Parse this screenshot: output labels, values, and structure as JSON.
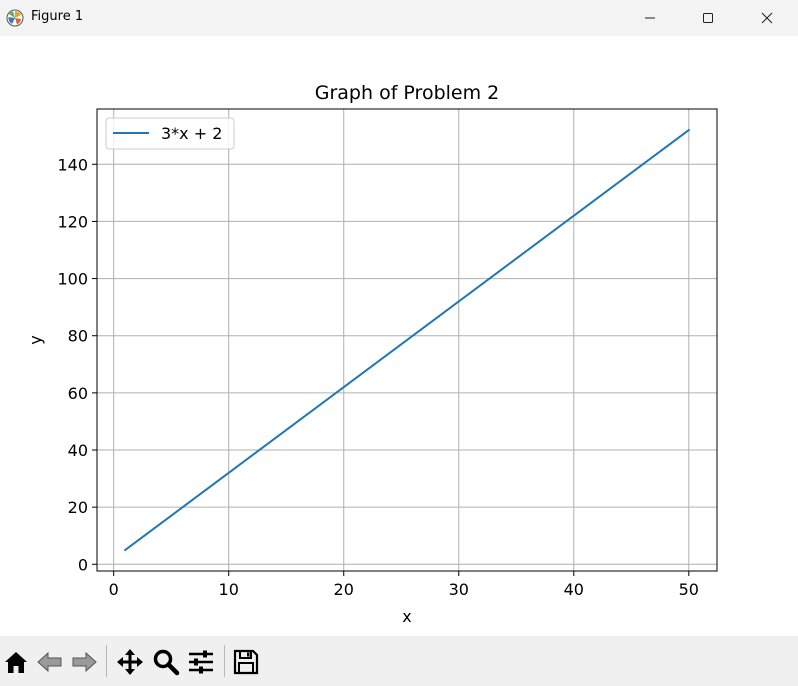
{
  "window": {
    "title": "Figure 1",
    "icon": "matplotlib-logo-icon",
    "controls": [
      "minimize-icon",
      "maximize-icon",
      "close-icon"
    ]
  },
  "toolbar": {
    "tools": [
      "home-icon",
      "back-arrow-icon",
      "forward-arrow-icon",
      "pan-icon",
      "zoom-icon",
      "configure-subplots-icon",
      "save-icon"
    ]
  },
  "chart_data": {
    "type": "line",
    "title": "Graph of Problem 2",
    "xlabel": "x",
    "ylabel": "y",
    "xlim": [
      -1.45,
      52.45
    ],
    "ylim": [
      -2.35,
      159.35
    ],
    "xticks": [
      0,
      10,
      20,
      30,
      40,
      50
    ],
    "yticks": [
      0,
      20,
      40,
      60,
      80,
      100,
      120,
      140
    ],
    "grid": true,
    "legend_position": "upper-left",
    "series": [
      {
        "name": "3*x + 2",
        "color": "#1f77b4",
        "x": [
          1,
          50
        ],
        "y": [
          5,
          152
        ]
      }
    ]
  }
}
